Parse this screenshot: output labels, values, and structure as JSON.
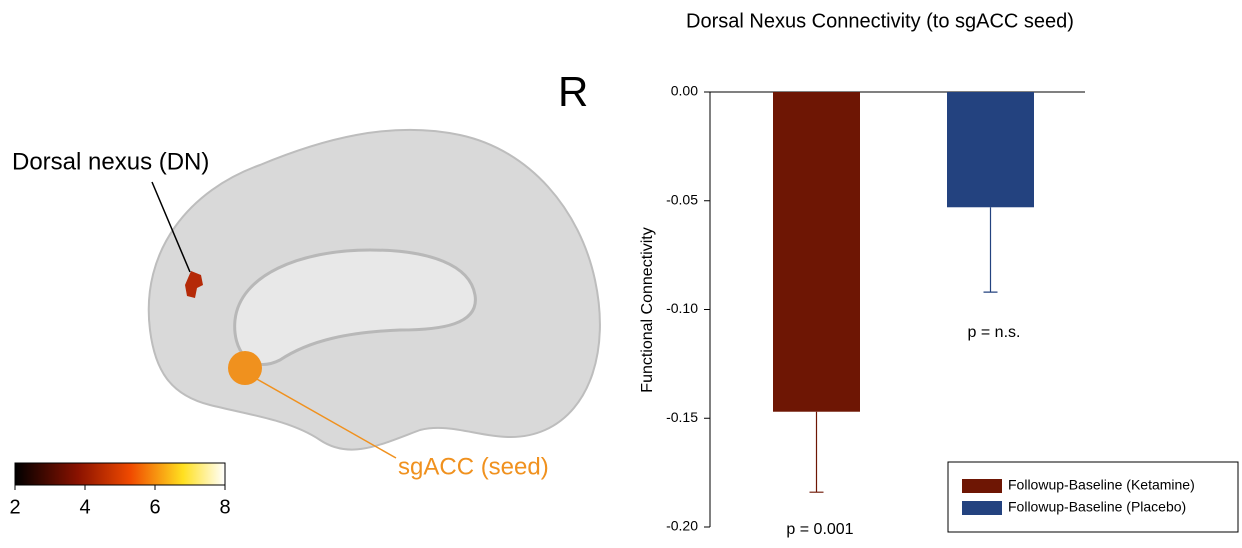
{
  "chart_data": {
    "type": "bar",
    "title": "Dorsal Nexus Connectivity (to sgACC seed)",
    "y_label": "Functional Connectivity",
    "categories": [
      null
    ],
    "series": [
      {
        "name": "Followup-Baseline (Ketamine)",
        "color": "#6e1604",
        "values": [
          -0.147
        ],
        "errors": [
          0.037
        ]
      },
      {
        "name": "Followup-Baseline (Placebo)",
        "color": "#23427f",
        "values": [
          -0.053
        ],
        "errors": [
          0.039
        ]
      }
    ],
    "annotations": [
      "p = 0.001",
      "p = n.s."
    ],
    "ylim": [
      -0.2,
      0
    ],
    "yticks": [
      {
        "value": 0,
        "label": "0.00"
      },
      {
        "value": -0.05,
        "label": "-0.05"
      },
      {
        "value": -0.1,
        "label": "-0.10"
      },
      {
        "value": -0.15,
        "label": "-0.15"
      },
      {
        "value": -0.2,
        "label": "-0.20"
      }
    ],
    "legend": "lower right"
  },
  "brain_panel": {
    "hemisphere": "R",
    "region_label": "Dorsal nexus (DN)",
    "seed_label": "sgACC (seed)",
    "colorbar": {
      "lim": [
        2,
        8
      ],
      "ticks": [
        2,
        4,
        6,
        8
      ]
    }
  }
}
